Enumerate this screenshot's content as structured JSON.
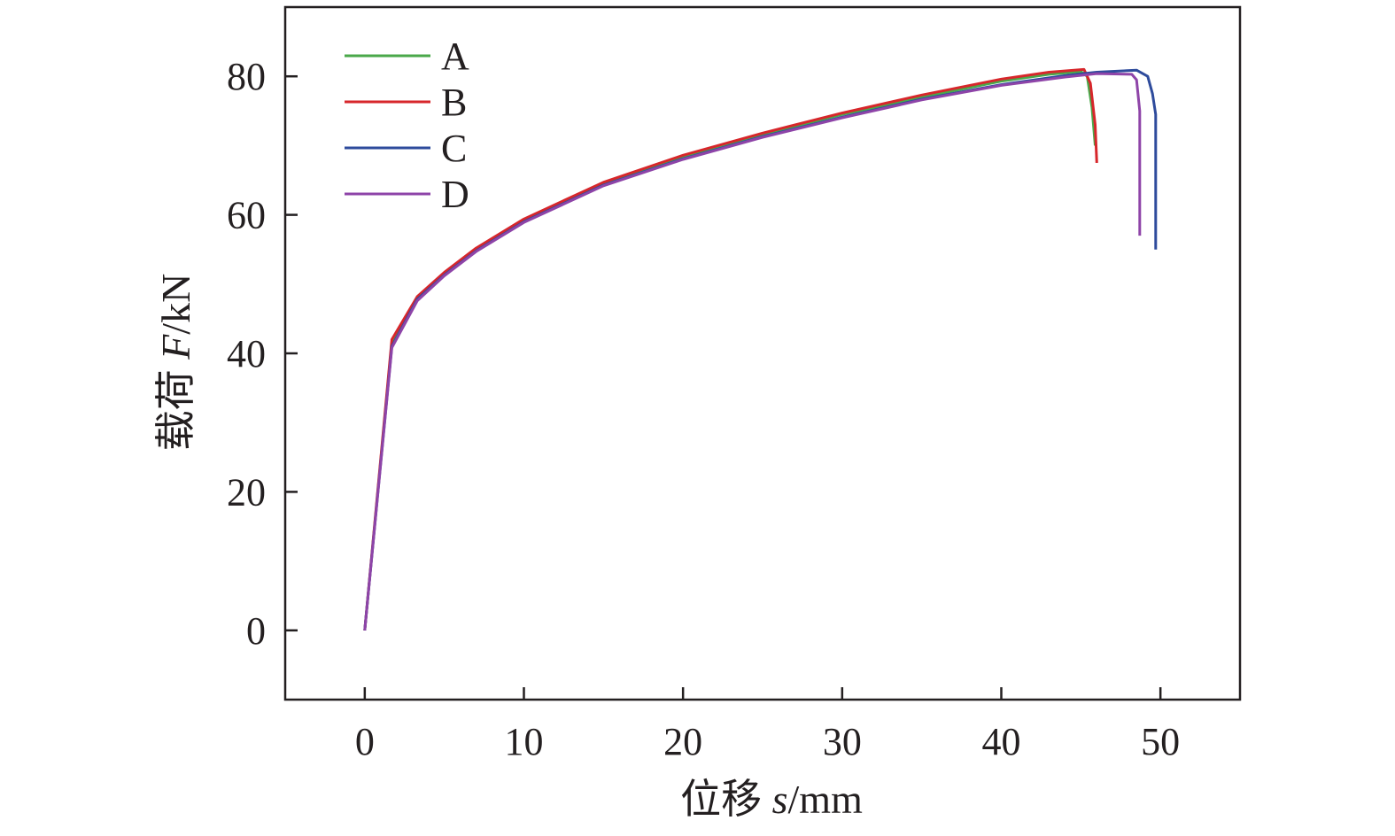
{
  "chart_data": {
    "type": "line",
    "title": "",
    "xlabel": {
      "prefix": "位移 ",
      "var": "s",
      "unit": "/mm"
    },
    "ylabel": {
      "prefix": "载荷 ",
      "var": "F",
      "unit": "/kN"
    },
    "xlim": [
      -5,
      55
    ],
    "ylim": [
      -10,
      90
    ],
    "xticks": [
      0,
      10,
      20,
      30,
      40,
      50
    ],
    "yticks": [
      0,
      20,
      40,
      60,
      80
    ],
    "grid": false,
    "legend": "top-left",
    "series": [
      {
        "name": "A",
        "color": "#4aa84a",
        "points": [
          [
            0,
            0
          ],
          [
            1.7,
            41.5
          ],
          [
            3.3,
            48
          ],
          [
            5,
            51.5
          ],
          [
            7,
            55
          ],
          [
            10,
            59.2
          ],
          [
            15,
            64.5
          ],
          [
            20,
            68.4
          ],
          [
            25,
            71.6
          ],
          [
            30,
            74.5
          ],
          [
            35,
            77
          ],
          [
            40,
            79.3
          ],
          [
            43,
            80.3
          ],
          [
            45,
            80.7
          ],
          [
            45.4,
            80
          ],
          [
            45.7,
            75.5
          ],
          [
            45.9,
            70
          ]
        ]
      },
      {
        "name": "B",
        "color": "#d7262b",
        "points": [
          [
            0,
            0
          ],
          [
            1.7,
            42
          ],
          [
            3.3,
            48.2
          ],
          [
            5,
            51.7
          ],
          [
            7,
            55.2
          ],
          [
            10,
            59.4
          ],
          [
            15,
            64.7
          ],
          [
            20,
            68.6
          ],
          [
            25,
            71.8
          ],
          [
            30,
            74.7
          ],
          [
            35,
            77.3
          ],
          [
            40,
            79.6
          ],
          [
            43,
            80.6
          ],
          [
            45.2,
            81
          ],
          [
            45.6,
            79
          ],
          [
            45.9,
            73
          ],
          [
            46,
            67.5
          ]
        ]
      },
      {
        "name": "C",
        "color": "#2e4b9c",
        "points": [
          [
            0,
            0
          ],
          [
            1.7,
            41
          ],
          [
            3.3,
            47.8
          ],
          [
            5,
            51.3
          ],
          [
            7,
            54.8
          ],
          [
            10,
            59
          ],
          [
            15,
            64.3
          ],
          [
            20,
            68.1
          ],
          [
            25,
            71.3
          ],
          [
            30,
            74.1
          ],
          [
            35,
            76.7
          ],
          [
            40,
            78.8
          ],
          [
            44,
            80.1
          ],
          [
            46,
            80.6
          ],
          [
            48.5,
            80.9
          ],
          [
            49.2,
            80
          ],
          [
            49.5,
            77.5
          ],
          [
            49.7,
            74.5
          ],
          [
            49.7,
            55
          ]
        ]
      },
      {
        "name": "D",
        "color": "#8e44a8",
        "points": [
          [
            0,
            0
          ],
          [
            1.7,
            40.8
          ],
          [
            3.3,
            47.6
          ],
          [
            5,
            51.2
          ],
          [
            7,
            54.7
          ],
          [
            10,
            58.9
          ],
          [
            15,
            64.2
          ],
          [
            20,
            68
          ],
          [
            25,
            71.2
          ],
          [
            30,
            74
          ],
          [
            35,
            76.6
          ],
          [
            40,
            78.7
          ],
          [
            44,
            79.9
          ],
          [
            46,
            80.4
          ],
          [
            48.2,
            80.3
          ],
          [
            48.5,
            79.5
          ],
          [
            48.7,
            75
          ],
          [
            48.7,
            57
          ]
        ]
      }
    ]
  }
}
